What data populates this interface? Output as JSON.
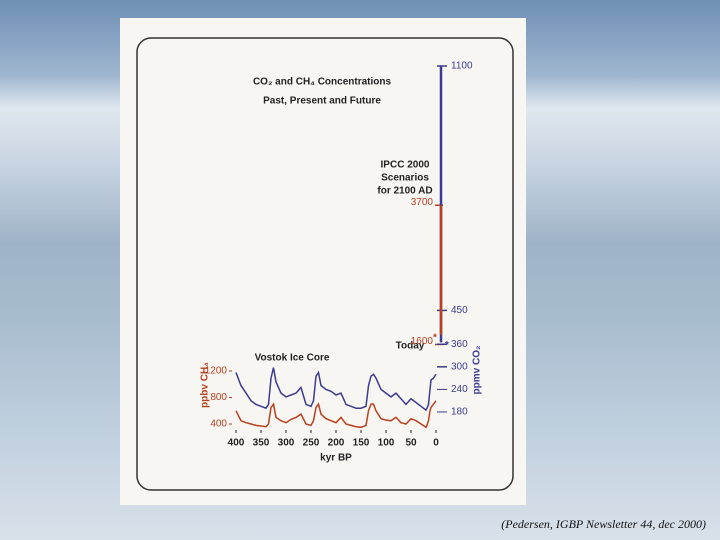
{
  "chart_data": {
    "type": "line",
    "title": "CO₂ and CH₄ Concentrations",
    "subtitle": "Past, Present and Future",
    "annotations": [
      "IPCC 2000",
      "Scenarios",
      "for 2100 AD",
      "Today",
      "Vostok Ice Core"
    ],
    "x": [
      400,
      390,
      380,
      370,
      360,
      350,
      340,
      335,
      330,
      325,
      320,
      310,
      300,
      290,
      280,
      270,
      260,
      250,
      245,
      240,
      235,
      230,
      220,
      210,
      200,
      190,
      180,
      170,
      160,
      150,
      140,
      135,
      130,
      125,
      120,
      110,
      100,
      90,
      80,
      70,
      60,
      50,
      40,
      30,
      20,
      18,
      15,
      12,
      10,
      5,
      0
    ],
    "xlim": [
      410,
      -12
    ],
    "xticks": [
      400,
      350,
      300,
      250,
      200,
      150,
      100,
      50,
      0
    ],
    "xlabel": "kyr BP",
    "ylim": [
      310,
      5800
    ],
    "yticks": [
      400,
      800,
      1200,
      1600,
      3700
    ],
    "ylabel": "ppbv CH₄",
    "y2lim": [
      132,
      1100
    ],
    "y2ticks": [
      180,
      240,
      300,
      360,
      450,
      1100
    ],
    "y2label": "ppmv CO₂",
    "series": [
      {
        "color": "#3b3b8f",
        "axis": "y2",
        "today": 365,
        "scenario_2100": 1100,
        "values": [
          285,
          250,
          230,
          210,
          200,
          195,
          190,
          200,
          270,
          298,
          260,
          230,
          220,
          225,
          230,
          245,
          200,
          195,
          210,
          275,
          285,
          250,
          240,
          235,
          225,
          230,
          200,
          195,
          190,
          190,
          195,
          250,
          275,
          280,
          270,
          240,
          230,
          220,
          230,
          215,
          200,
          215,
          205,
          195,
          185,
          190,
          200,
          240,
          265,
          270,
          280
        ]
      },
      {
        "color": "#b8401e",
        "axis": "y",
        "today": 1745,
        "scenario_2100": 3700,
        "values": [
          600,
          450,
          420,
          400,
          380,
          370,
          360,
          400,
          650,
          700,
          500,
          450,
          420,
          470,
          500,
          550,
          400,
          380,
          450,
          650,
          700,
          550,
          480,
          450,
          420,
          500,
          400,
          380,
          360,
          350,
          380,
          600,
          700,
          700,
          600,
          480,
          460,
          450,
          500,
          420,
          400,
          480,
          450,
          400,
          350,
          380,
          450,
          600,
          650,
          700,
          750
        ]
      }
    ]
  },
  "citation": "(Pedersen, IGBP Newsletter 44, dec 2000)"
}
